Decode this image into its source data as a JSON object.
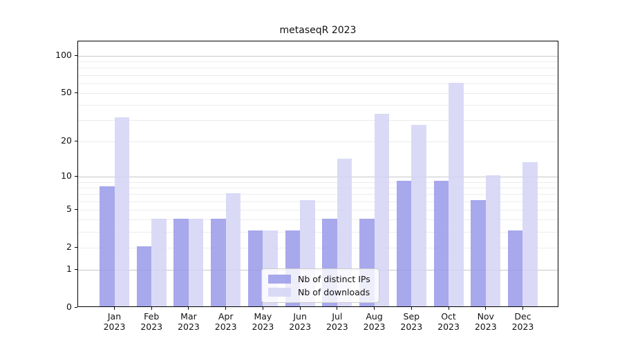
{
  "chart_data": {
    "type": "bar",
    "title": "metaseqR 2023",
    "year_label": "2023",
    "categories": [
      "Jan",
      "Feb",
      "Mar",
      "Apr",
      "May",
      "Jun",
      "Jul",
      "Aug",
      "Sep",
      "Oct",
      "Nov",
      "Dec"
    ],
    "series": [
      {
        "name": "Nb of distinct IPs",
        "color": "#9c9ce9",
        "values": [
          8,
          2,
          4,
          4,
          3,
          3,
          4,
          4,
          9,
          9,
          6,
          3
        ]
      },
      {
        "name": "Nb of downloads",
        "color": "#d5d5f6",
        "values": [
          31,
          4,
          4,
          7,
          3,
          6,
          14,
          33,
          27,
          59,
          10,
          13
        ]
      }
    ],
    "yscale": "log1p",
    "ylim": [
      0,
      129
    ],
    "yticks": [
      0,
      1,
      2,
      5,
      10,
      20,
      50,
      100
    ],
    "grid_major": [
      1,
      10,
      100
    ],
    "grid_minor": [
      2,
      3,
      4,
      5,
      6,
      7,
      8,
      9,
      20,
      30,
      40,
      50,
      60,
      70,
      80,
      90
    ],
    "grid_major_color": "#c7c7c7",
    "grid_minor_color": "#ececec",
    "axis_color": "#000000",
    "text_color": "#111111",
    "legend_position": "bottom-center-inset",
    "xlabel": "",
    "ylabel": ""
  }
}
